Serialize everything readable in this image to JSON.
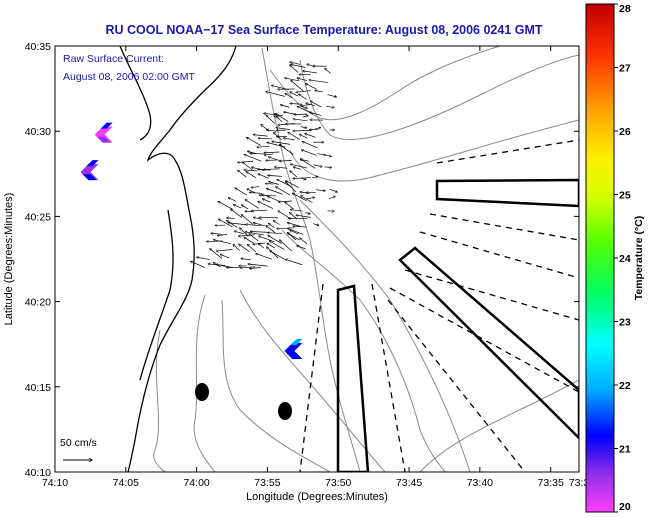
{
  "chart_data": {
    "type": "map",
    "title": "RU COOL  NOAA−17  Sea Surface Temperature:  August 08, 2006 0241 GMT",
    "xlabel": "Longitude (Degrees:Minutes)",
    "ylabel": "Latitude (Degrees:Minutes)",
    "x_ticks": [
      "74:10",
      "74:05",
      "74:00",
      "73:55",
      "73:50",
      "73:45",
      "73:40",
      "73:35",
      "73:3"
    ],
    "y_ticks": [
      "40:10",
      "40:15",
      "40:20",
      "40:25",
      "40:30",
      "40:35"
    ],
    "xlim_minutes": [
      0,
      37
    ],
    "ylim_minutes": [
      0,
      25
    ],
    "annotation": {
      "line1": "Raw Surface Current:",
      "line2": "August 08, 2006 02:00 GMT"
    },
    "scale_label": "50 cm/s",
    "colorbar": {
      "label": "Temperature (°C)",
      "min": 20,
      "max": 28,
      "ticks": [
        "20",
        "21",
        "22",
        "23",
        "24",
        "25",
        "26",
        "27",
        "28"
      ]
    },
    "patches": [
      {
        "name": "patch-upper-1",
        "lon_min": 2.8,
        "lat_min": 19.8,
        "temp": 20.3
      },
      {
        "name": "patch-upper-2",
        "lon_min": 1.8,
        "lat_min": 17.6,
        "temp": 20.6
      },
      {
        "name": "patch-mid",
        "lon_min": 16.2,
        "lat_min": 7.1,
        "temp": 21.2
      }
    ]
  },
  "colors": {
    "title": "#1a1aa6",
    "land": "#ffffff",
    "contour": "#888888",
    "arrows": "#000000",
    "colormap": [
      "#ff3fff",
      "#9a30e8",
      "#0000ff",
      "#00aaff",
      "#00ffff",
      "#00ff66",
      "#55ff00",
      "#d6ff00",
      "#ffee00",
      "#ff9a00",
      "#ff3000",
      "#c00000"
    ]
  }
}
